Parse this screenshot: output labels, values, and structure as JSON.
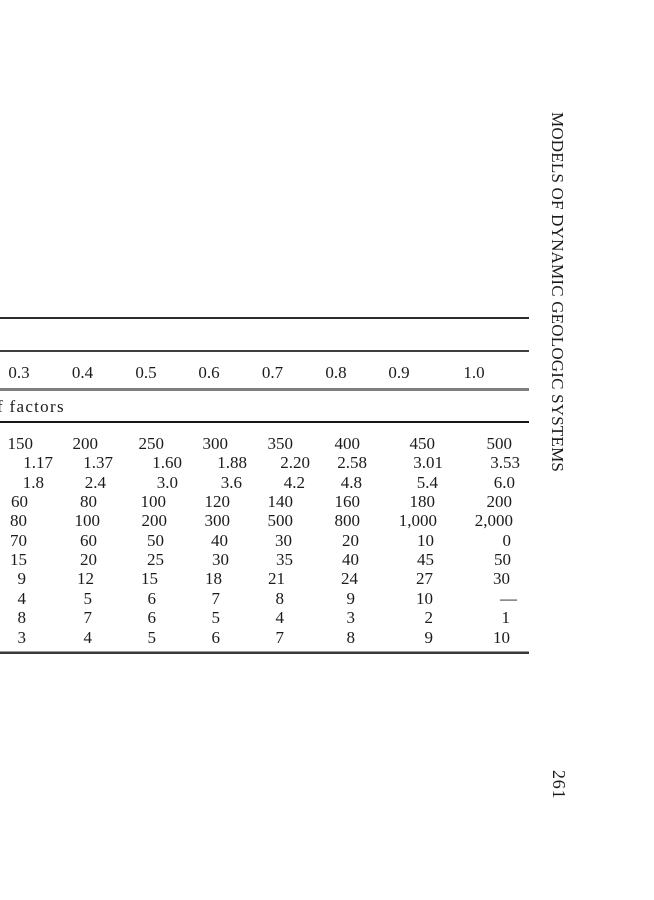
{
  "page": {
    "running_head": "MODELS OF DYNAMIC GEOLOGIC SYSTEMS",
    "page_number": "261",
    "background_color": "#ffffff",
    "ink_color": "#1b1b1b",
    "rule_gray_color": "#7e7e7e"
  },
  "table": {
    "section_label": "f factors",
    "columns": [
      "0.3",
      "0.4",
      "0.5",
      "0.6",
      "0.7",
      "0.8",
      "0.9",
      "1.0"
    ],
    "rows": [
      [
        "150",
        "200",
        "250",
        "300",
        "350",
        "400",
        "450",
        "500"
      ],
      [
        "1.17",
        "1.37",
        "1.60",
        "1.88",
        "2.20",
        "2.58",
        "3.01",
        "3.53"
      ],
      [
        "1.8",
        "2.4",
        "3.0",
        "3.6",
        "4.2",
        "4.8",
        "5.4",
        "6.0"
      ],
      [
        "60",
        "80",
        "100",
        "120",
        "140",
        "160",
        "180",
        "200"
      ],
      [
        "80",
        "100",
        "200",
        "300",
        "500",
        "800",
        "1,000",
        "2,000"
      ],
      [
        "70",
        "60",
        "50",
        "40",
        "30",
        "20",
        "10",
        "0"
      ],
      [
        "15",
        "20",
        "25",
        "30",
        "35",
        "40",
        "45",
        "50"
      ],
      [
        "9",
        "12",
        "15",
        "18",
        "21",
        "24",
        "27",
        "30"
      ],
      [
        "4",
        "5",
        "6",
        "7",
        "8",
        "9",
        "10",
        "—"
      ],
      [
        "8",
        "7",
        "6",
        "5",
        "4",
        "3",
        "2",
        "1"
      ],
      [
        "3",
        "4",
        "5",
        "6",
        "7",
        "8",
        "9",
        "10"
      ]
    ]
  }
}
